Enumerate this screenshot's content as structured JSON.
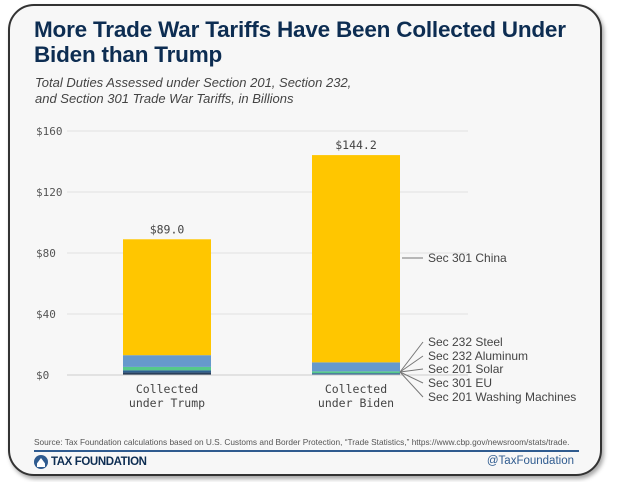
{
  "title": "More Trade War Tariffs Have Been Collected Under Biden than Trump",
  "subtitle_line1": "Total Duties Assessed under Section 201, Section 232,",
  "subtitle_line2": "and Section 301 Trade War Tariffs, in Billions",
  "source": "Source: Tax Foundation calculations based on U.S. Customs and Border Protection, “Trade Statistics,” https://www.cbp.gov/newsroom/stats/trade.",
  "logo_text": "TAX FOUNDATION",
  "handle": "@TaxFoundation",
  "chart_data": {
    "type": "bar",
    "stacked": true,
    "categories": [
      "Collected\nunder Trump",
      "Collected\nunder Biden"
    ],
    "category_lines": [
      [
        "Collected",
        "under Trump"
      ],
      [
        "Collected",
        "under Biden"
      ]
    ],
    "totals": [
      "$89.0",
      "$144.2"
    ],
    "total_values": [
      89.0,
      144.2
    ],
    "ylim": [
      0,
      160
    ],
    "yticks": [
      0,
      40,
      80,
      120,
      160
    ],
    "ytick_labels": [
      "$0",
      "$40",
      "$80",
      "$120",
      "$160"
    ],
    "grid": true,
    "legend_placement": "right (direct labels)",
    "series": [
      {
        "name": "Sec 201 Washing Machines",
        "values": [
          1.2,
          0.2
        ],
        "color": "#0b2340"
      },
      {
        "name": "Sec 301 EU",
        "values": [
          0.6,
          0.1
        ],
        "color": "#1d3f66"
      },
      {
        "name": "Sec 201 Solar",
        "values": [
          1.3,
          0.9
        ],
        "color": "#2e6090"
      },
      {
        "name": "Sec 232 Aluminum",
        "values": [
          2.2,
          1.2
        ],
        "color": "#55c98a"
      },
      {
        "name": "Sec 232 Steel",
        "values": [
          7.7,
          5.9
        ],
        "color": "#6699cc"
      },
      {
        "name": "Sec 301 China",
        "values": [
          76.0,
          135.9
        ],
        "color": "#ffc600"
      }
    ]
  }
}
